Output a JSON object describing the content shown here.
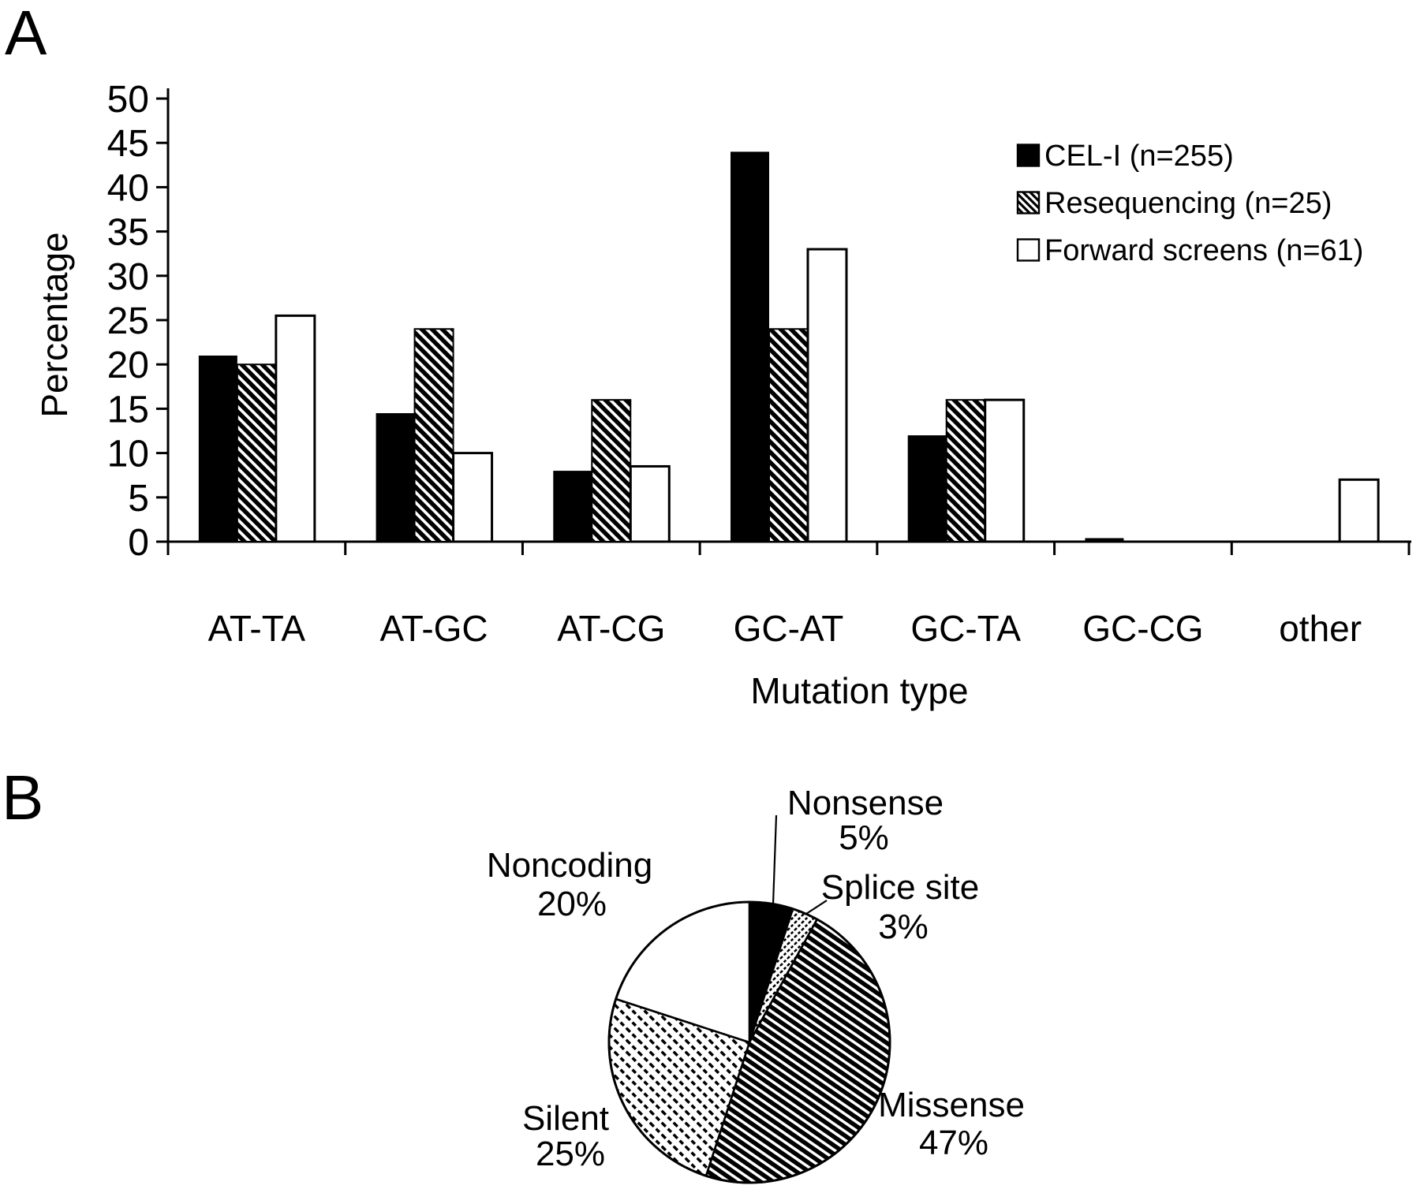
{
  "figure": {
    "panel_a_label": "A",
    "panel_b_label": "B",
    "background_color": "#ffffff",
    "ink_color": "#000000"
  },
  "chart_data": [
    {
      "type": "bar",
      "panel": "A",
      "title": "",
      "xlabel": "Mutation type",
      "ylabel": "Percentage",
      "ylim": [
        0,
        50
      ],
      "ytick_step": 5,
      "grid": false,
      "legend_position": "top-right",
      "categories": [
        "AT-TA",
        "AT-GC",
        "AT-CG",
        "GC-AT",
        "GC-TA",
        "GC-CG",
        "other"
      ],
      "series": [
        {
          "name": "CEL-I (n=255)",
          "pattern": "solid-black",
          "values": [
            21,
            14.5,
            8,
            44,
            12,
            0.4,
            0
          ]
        },
        {
          "name": "Resequencing (n=25)",
          "pattern": "diagonal-hatch",
          "values": [
            20,
            24,
            16,
            24,
            16,
            0,
            0
          ]
        },
        {
          "name": "Forward screens (n=61)",
          "pattern": "white-outline",
          "values": [
            25.5,
            10,
            8.5,
            33,
            16,
            0,
            7
          ]
        }
      ]
    },
    {
      "type": "pie",
      "panel": "B",
      "start_angle_deg": 0,
      "direction": "clockwise",
      "slices": [
        {
          "name": "Nonsense",
          "value": 5,
          "label": "Nonsense",
          "pct_label": "5%",
          "pattern": "solid-black"
        },
        {
          "name": "Splice site",
          "value": 3,
          "label": "Splice site",
          "pct_label": "3%",
          "pattern": "fine-hatch"
        },
        {
          "name": "Missense",
          "value": 47,
          "label": "Missense",
          "pct_label": "47%",
          "pattern": "dense-hatch"
        },
        {
          "name": "Silent",
          "value": 25,
          "label": "Silent",
          "pct_label": "25%",
          "pattern": "light-hatch"
        },
        {
          "name": "Noncoding",
          "value": 20,
          "label": "Noncoding",
          "pct_label": "20%",
          "pattern": "white"
        }
      ]
    }
  ]
}
